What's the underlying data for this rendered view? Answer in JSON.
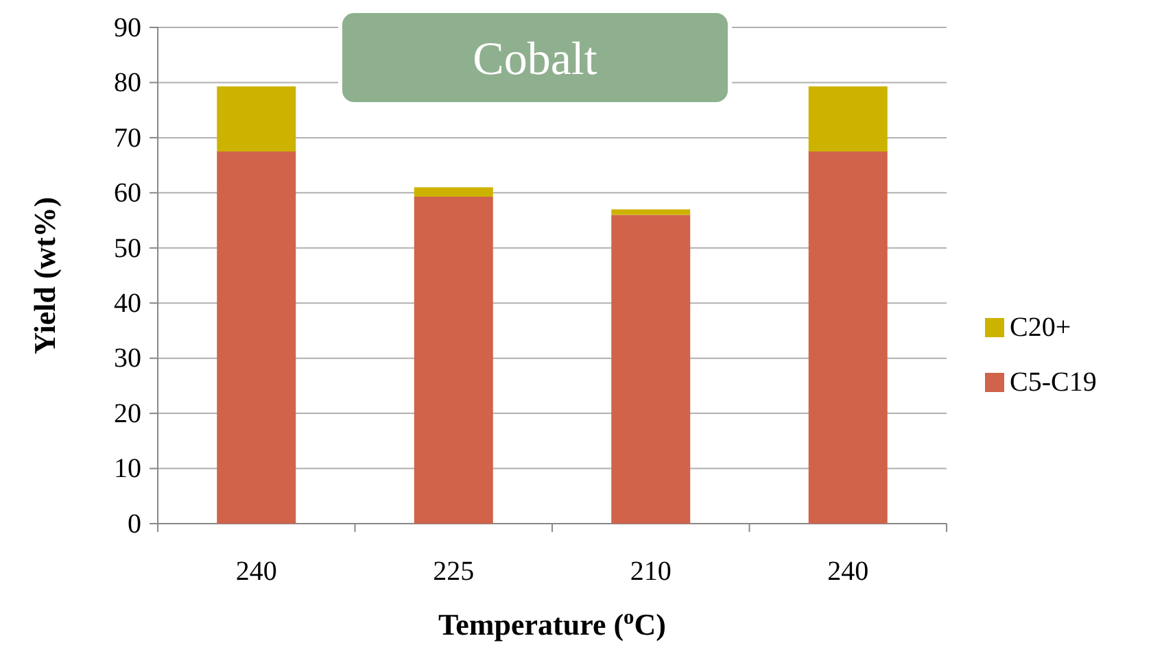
{
  "chart_data": {
    "type": "bar",
    "stacked": true,
    "title": "Cobalt",
    "xlabel": "Temperature ($^{o}$C)",
    "ylabel": "Yield (wt%)",
    "categories": [
      "240",
      "225",
      "210",
      "240"
    ],
    "series": [
      {
        "name": "C5-C19",
        "color": "#d0634a",
        "values": [
          67.5,
          59.3,
          56,
          67.5
        ]
      },
      {
        "name": "C20+",
        "color": "#cdb300",
        "values": [
          11.8,
          1.7,
          1,
          11.8
        ]
      }
    ],
    "ylim": [
      0,
      90
    ],
    "yticks": [
      0,
      10,
      20,
      30,
      40,
      50,
      60,
      70,
      80,
      90
    ],
    "grid": "y",
    "legend": "right"
  }
}
